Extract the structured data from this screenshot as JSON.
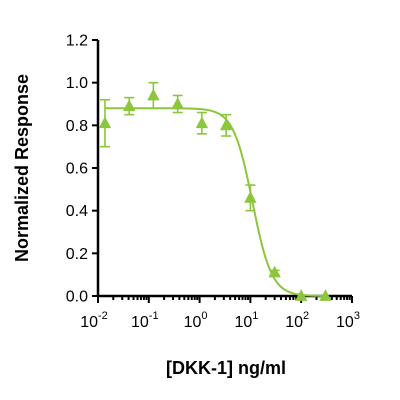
{
  "chart_data": {
    "type": "scatter",
    "title": "",
    "xlabel": "[DKK-1] ng/ml",
    "ylabel": "Normalized Response",
    "xscale": "log",
    "xlim": [
      0.01,
      1000
    ],
    "ylim": [
      0.0,
      1.2
    ],
    "grid": false,
    "legend": "none",
    "x_ticks": [
      {
        "base": "10",
        "exp": "-2"
      },
      {
        "base": "10",
        "exp": "-1"
      },
      {
        "base": "10",
        "exp": "0"
      },
      {
        "base": "10",
        "exp": "1"
      },
      {
        "base": "10",
        "exp": "2"
      },
      {
        "base": "10",
        "exp": "3"
      }
    ],
    "y_ticks": [
      "0.0",
      "0.2",
      "0.4",
      "0.6",
      "0.8",
      "1.0",
      "1.2"
    ],
    "color": "#8cc63f",
    "marker": "triangle",
    "series": [
      {
        "points": [
          {
            "x": 0.0137,
            "y": 0.81,
            "err": 0.11
          },
          {
            "x": 0.0412,
            "y": 0.89,
            "err": 0.04
          },
          {
            "x": 0.123,
            "y": 0.94,
            "err": 0.06
          },
          {
            "x": 0.37,
            "y": 0.9,
            "err": 0.04
          },
          {
            "x": 1.11,
            "y": 0.81,
            "err": 0.05
          },
          {
            "x": 3.33,
            "y": 0.8,
            "err": 0.05
          },
          {
            "x": 10.0,
            "y": 0.46,
            "err": 0.06
          },
          {
            "x": 30.0,
            "y": 0.11,
            "err": 0.01
          },
          {
            "x": 100.0,
            "y": 0.0,
            "err": 0.0
          },
          {
            "x": 300.0,
            "y": 0.0,
            "err": 0.0
          }
        ],
        "fit": {
          "model": "4PL",
          "top": 0.88,
          "bottom": 0.0,
          "ec50": 11.0,
          "hill": 2.3
        }
      }
    ]
  }
}
